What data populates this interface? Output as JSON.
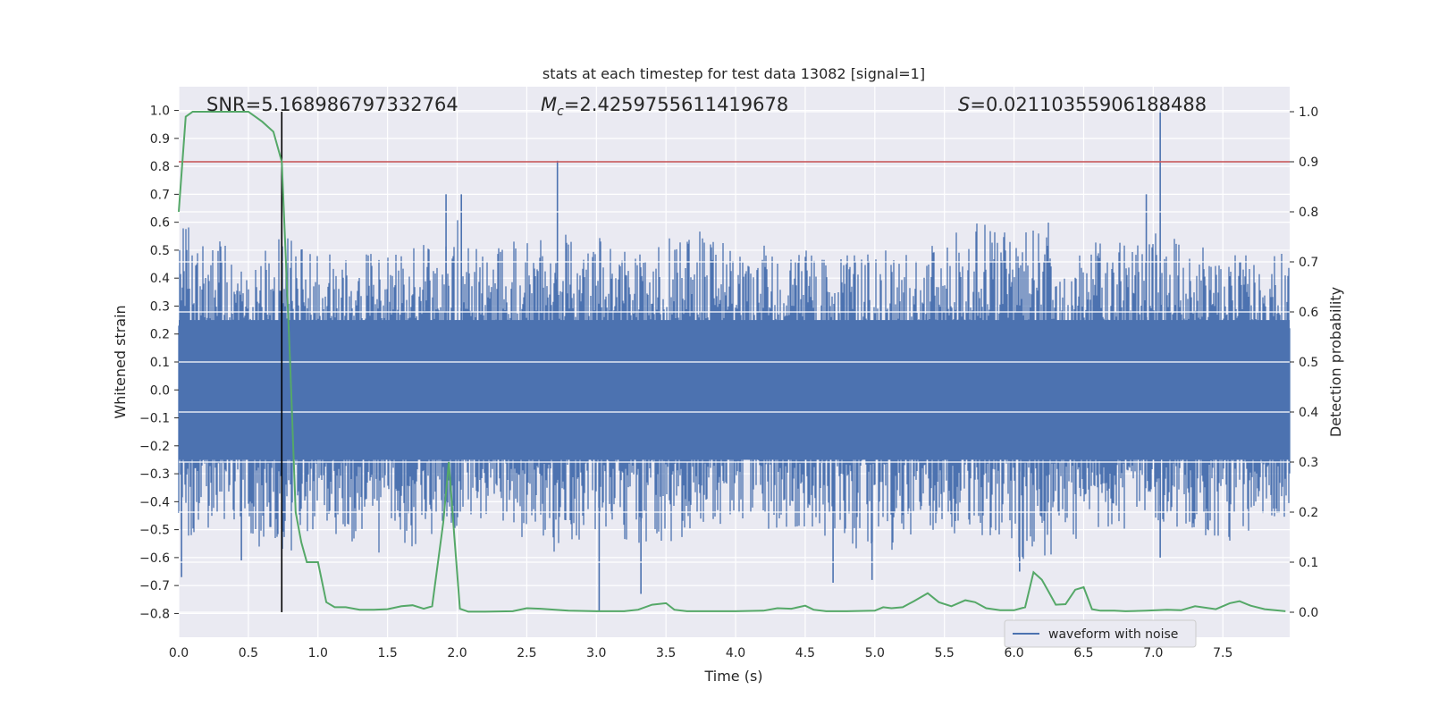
{
  "chart_data": {
    "type": "line",
    "title": "stats at each timestep for test data 13082 [signal=1]",
    "xlabel": "Time (s)",
    "ylabel_left": "Whitened strain",
    "ylabel_right": "Detection probability",
    "xlim": [
      0.0,
      7.98
    ],
    "ylim_left": [
      -0.885,
      1.085
    ],
    "ylim_right": [
      -0.05,
      1.05
    ],
    "x_ticks": [
      "0.0",
      "0.5",
      "1.0",
      "1.5",
      "2.0",
      "2.5",
      "3.0",
      "3.5",
      "4.0",
      "4.5",
      "5.0",
      "5.5",
      "6.0",
      "6.5",
      "7.0",
      "7.5"
    ],
    "x_tick_values": [
      0.0,
      0.5,
      1.0,
      1.5,
      2.0,
      2.5,
      3.0,
      3.5,
      4.0,
      4.5,
      5.0,
      5.5,
      6.0,
      6.5,
      7.0,
      7.5
    ],
    "y_ticks_left": [
      "1.0",
      "0.9",
      "0.8",
      "0.7",
      "0.6",
      "0.5",
      "0.4",
      "0.3",
      "0.2",
      "0.1",
      "0.0",
      "−0.1",
      "−0.2",
      "−0.3",
      "−0.4",
      "−0.5",
      "−0.6",
      "−0.7",
      "−0.8"
    ],
    "y_tick_values_left": [
      1.0,
      0.9,
      0.8,
      0.7,
      0.6,
      0.5,
      0.4,
      0.3,
      0.2,
      0.1,
      0.0,
      -0.1,
      -0.2,
      -0.3,
      -0.4,
      -0.5,
      -0.6,
      -0.7,
      -0.8
    ],
    "y_ticks_right": [
      "1.0",
      "0.9",
      "0.8",
      "0.7",
      "0.6",
      "0.5",
      "0.4",
      "0.3",
      "0.2",
      "0.1",
      "0.0"
    ],
    "y_tick_values_right": [
      1.0,
      0.9,
      0.8,
      0.7,
      0.6,
      0.5,
      0.4,
      0.3,
      0.2,
      0.1,
      0.0
    ],
    "grid": true,
    "legend_position": "lower-right",
    "annotations": {
      "snr": "SNR=5.168986797332764",
      "mc_symbol": "M",
      "mc_subscript": "c",
      "mc_value": "=2.4259755611419678",
      "s_symbol": "S",
      "s_value": "=0.02110355906188488"
    },
    "vertical_marker_x": 0.74,
    "threshold_probability": 0.9,
    "series": [
      {
        "name": "waveform with noise",
        "axis": "left",
        "color": "#4c72b0",
        "description_level": "dense noise band",
        "envelope": {
          "x": [
            0.0,
            0.25,
            0.5,
            0.75,
            1.0,
            1.25,
            1.5,
            1.75,
            2.0,
            2.25,
            2.5,
            2.75,
            3.0,
            3.25,
            3.5,
            3.75,
            4.0,
            4.25,
            4.5,
            4.75,
            5.0,
            5.25,
            5.5,
            5.75,
            6.0,
            6.25,
            6.5,
            6.75,
            7.0,
            7.25,
            7.5,
            7.75,
            7.98
          ],
          "upper": [
            0.6,
            0.55,
            0.5,
            0.55,
            0.5,
            0.5,
            0.48,
            0.52,
            0.62,
            0.5,
            0.55,
            0.6,
            0.55,
            0.5,
            0.55,
            0.58,
            0.5,
            0.52,
            0.5,
            0.48,
            0.5,
            0.5,
            0.55,
            0.6,
            0.55,
            0.6,
            0.52,
            0.55,
            0.62,
            0.55,
            0.5,
            0.48,
            0.5
          ],
          "lower": [
            -0.55,
            -0.5,
            -0.55,
            -0.6,
            -0.5,
            -0.55,
            -0.6,
            -0.55,
            -0.5,
            -0.45,
            -0.55,
            -0.6,
            -0.5,
            -0.6,
            -0.55,
            -0.5,
            -0.48,
            -0.5,
            -0.5,
            -0.55,
            -0.6,
            -0.55,
            -0.5,
            -0.55,
            -0.62,
            -0.6,
            -0.55,
            -0.5,
            -0.5,
            -0.5,
            -0.55,
            -0.5,
            -0.45
          ]
        },
        "spikes": [
          {
            "x": 0.02,
            "y": -0.67
          },
          {
            "x": 0.45,
            "y": -0.61
          },
          {
            "x": 1.92,
            "y": 0.7
          },
          {
            "x": 2.03,
            "y": 0.7
          },
          {
            "x": 2.72,
            "y": 0.82
          },
          {
            "x": 3.02,
            "y": -0.79
          },
          {
            "x": 3.32,
            "y": -0.73
          },
          {
            "x": 4.7,
            "y": -0.69
          },
          {
            "x": 4.98,
            "y": -0.68
          },
          {
            "x": 6.04,
            "y": -0.65
          },
          {
            "x": 6.95,
            "y": 0.7
          },
          {
            "x": 7.05,
            "y": 1.0
          },
          {
            "x": 7.05,
            "y": -0.6
          }
        ]
      },
      {
        "name": "",
        "axis": "right",
        "color": "#55a868",
        "x": [
          0.0,
          0.05,
          0.1,
          0.2,
          0.3,
          0.4,
          0.5,
          0.55,
          0.6,
          0.68,
          0.74,
          0.8,
          0.84,
          0.88,
          0.92,
          0.96,
          1.0,
          1.06,
          1.12,
          1.2,
          1.3,
          1.4,
          1.5,
          1.6,
          1.68,
          1.76,
          1.82,
          1.9,
          1.94,
          1.98,
          2.02,
          2.08,
          2.2,
          2.4,
          2.5,
          2.6,
          2.8,
          3.0,
          3.2,
          3.3,
          3.4,
          3.5,
          3.56,
          3.65,
          3.8,
          4.0,
          4.2,
          4.3,
          4.4,
          4.5,
          4.56,
          4.65,
          4.8,
          5.0,
          5.06,
          5.12,
          5.2,
          5.28,
          5.38,
          5.46,
          5.55,
          5.65,
          5.72,
          5.8,
          5.9,
          6.0,
          6.08,
          6.14,
          6.2,
          6.24,
          6.3,
          6.37,
          6.44,
          6.5,
          6.56,
          6.62,
          6.72,
          6.8,
          6.95,
          7.1,
          7.2,
          7.3,
          7.45,
          7.55,
          7.62,
          7.7,
          7.8,
          7.95
        ],
        "y": [
          0.8,
          0.99,
          1.0,
          1.0,
          1.0,
          1.0,
          1.0,
          0.99,
          0.98,
          0.96,
          0.9,
          0.5,
          0.2,
          0.14,
          0.1,
          0.1,
          0.1,
          0.02,
          0.01,
          0.01,
          0.005,
          0.005,
          0.006,
          0.012,
          0.014,
          0.007,
          0.012,
          0.18,
          0.3,
          0.15,
          0.007,
          0.001,
          0.001,
          0.002,
          0.008,
          0.007,
          0.003,
          0.002,
          0.002,
          0.005,
          0.015,
          0.018,
          0.005,
          0.002,
          0.002,
          0.002,
          0.003,
          0.008,
          0.007,
          0.013,
          0.005,
          0.002,
          0.002,
          0.003,
          0.01,
          0.008,
          0.01,
          0.022,
          0.038,
          0.02,
          0.012,
          0.024,
          0.02,
          0.008,
          0.004,
          0.004,
          0.01,
          0.08,
          0.065,
          0.045,
          0.015,
          0.016,
          0.045,
          0.05,
          0.006,
          0.003,
          0.003,
          0.002,
          0.003,
          0.005,
          0.004,
          0.012,
          0.006,
          0.018,
          0.022,
          0.013,
          0.006,
          0.002
        ]
      }
    ]
  }
}
